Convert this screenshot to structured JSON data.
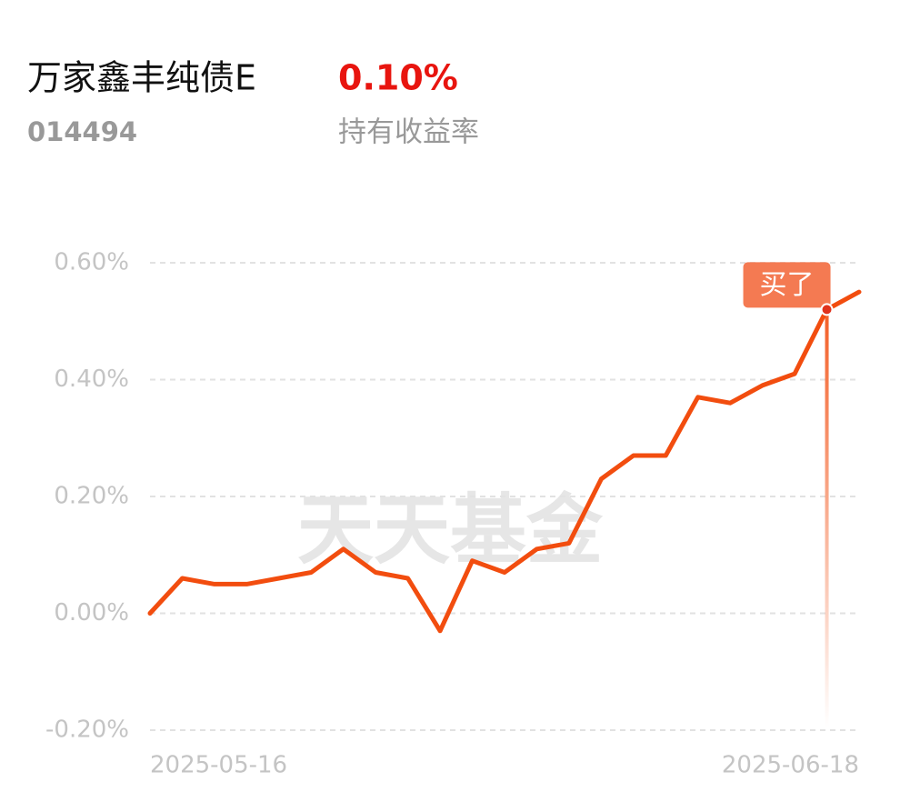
{
  "chart_data": {
    "type": "line",
    "title": "万家鑫丰纯债E",
    "return_value": "0.10%",
    "fund_code": "014494",
    "return_label": "持有收益率",
    "watermark": "天天基金",
    "categories": [
      "2025-05-16",
      null,
      null,
      null,
      null,
      null,
      null,
      null,
      null,
      null,
      null,
      null,
      null,
      null,
      null,
      null,
      null,
      null,
      null,
      null,
      null,
      null,
      "2025-06-18"
    ],
    "series": [
      {
        "color": "#f24d0f",
        "values": [
          0.0,
          0.06,
          0.05,
          0.05,
          0.06,
          0.07,
          0.11,
          0.07,
          0.06,
          -0.03,
          0.09,
          0.07,
          0.11,
          0.12,
          0.23,
          0.27,
          0.27,
          0.37,
          0.36,
          0.39,
          0.41,
          0.52,
          0.55
        ]
      }
    ],
    "ylim": [
      -0.2,
      0.6
    ],
    "yticks": [
      {
        "value": 0.6,
        "label": "0.60%"
      },
      {
        "value": 0.4,
        "label": "0.40%"
      },
      {
        "value": 0.2,
        "label": "0.20%"
      },
      {
        "value": 0,
        "label": "0.00%"
      },
      {
        "value": -0.2,
        "label": "-0.20%"
      }
    ],
    "grid": true,
    "annotations": [
      {
        "text": "买了",
        "at": 21
      }
    ]
  }
}
